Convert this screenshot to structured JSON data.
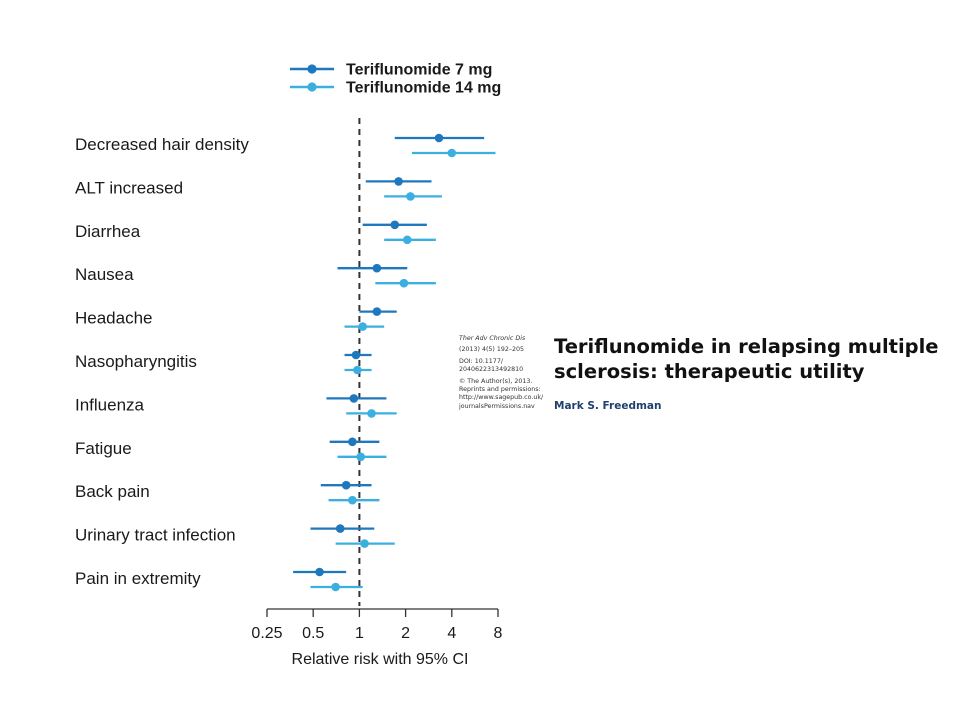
{
  "paper": {
    "title": "Teriflunomide in relapsing multiple sclerosis: therapeutic utility",
    "author": "Mark S. Freedman",
    "journal": "Ther Adv Chronic Dis",
    "volume_pages": "(2013) 4(5) 192–205",
    "doi_line1": "DOI: 10.1177/",
    "doi_line2": "2040622313492810",
    "copyright": "© The Author(s), 2013.",
    "reprints_line1": "Reprints and permissions:",
    "reprints_line2": "http://www.sagepub.co.uk/",
    "reprints_line3": "journalsPermissions.nav"
  },
  "chart_data": {
    "type": "forest",
    "xlabel": "Relative risk with 95% CI",
    "x_scale": "log2",
    "xlim": [
      0.25,
      8
    ],
    "x_ticks": [
      0.25,
      0.5,
      1,
      2,
      4,
      8
    ],
    "x_tick_labels": [
      "0.25",
      "0.5",
      "1",
      "2",
      "4",
      "8"
    ],
    "reference_line": 1,
    "legend_position": "top",
    "categories": [
      "Decreased hair density",
      "ALT increased",
      "Diarrhea",
      "Nausea",
      "Headache",
      "Nasopharyngitis",
      "Influenza",
      "Fatigue",
      "Back pain",
      "Urinary tract infection",
      "Pain in extremity"
    ],
    "series": [
      {
        "name": "Teriflunomide 7 mg",
        "color": "#1f78bd",
        "estimate": [
          3.3,
          1.8,
          1.7,
          1.3,
          1.3,
          0.95,
          0.92,
          0.9,
          0.82,
          0.75,
          0.55
        ],
        "ci_low": [
          1.7,
          1.1,
          1.05,
          0.72,
          1.0,
          0.8,
          0.61,
          0.64,
          0.56,
          0.48,
          0.37
        ],
        "ci_high": [
          6.5,
          2.95,
          2.75,
          2.05,
          1.75,
          1.2,
          1.5,
          1.35,
          1.2,
          1.25,
          0.82
        ]
      },
      {
        "name": "Teriflunomide 14 mg",
        "color": "#3bb0e0",
        "estimate": [
          4.0,
          2.15,
          2.05,
          1.95,
          1.05,
          0.97,
          1.2,
          1.02,
          0.9,
          1.08,
          0.7
        ],
        "ci_low": [
          2.2,
          1.45,
          1.45,
          1.27,
          0.8,
          0.8,
          0.82,
          0.72,
          0.63,
          0.7,
          0.48
        ],
        "ci_high": [
          7.7,
          3.45,
          3.15,
          3.15,
          1.45,
          1.2,
          1.75,
          1.5,
          1.35,
          1.7,
          1.05
        ]
      }
    ]
  }
}
